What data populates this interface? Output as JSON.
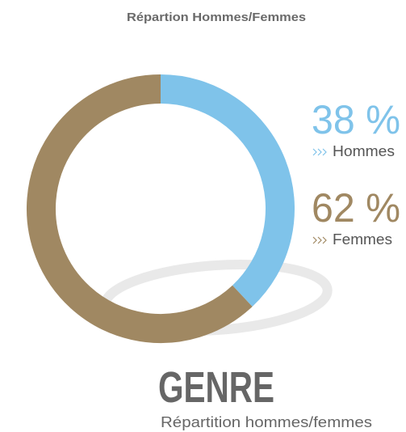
{
  "chart_data": {
    "type": "donut",
    "title": "Répartion Hommes/Femmes",
    "categories": [
      "Hommes",
      "Femmes"
    ],
    "values": [
      38,
      62
    ],
    "value_labels": [
      "38 %",
      "62 %"
    ],
    "colors": [
      "#7fc3ea",
      "#a08862"
    ],
    "caption": "GENRE",
    "subcaption": "Répartition hommes/femmes"
  }
}
